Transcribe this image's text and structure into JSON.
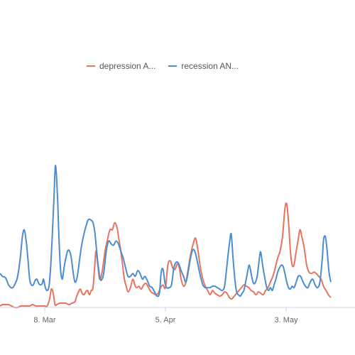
{
  "chart_data": {
    "type": "line",
    "title": "",
    "xlabel": "",
    "ylabel": "",
    "x_tick_labels": [
      "8. Mar",
      "5. Apr",
      "3. May"
    ],
    "ylim": [
      0,
      100
    ],
    "grid": false,
    "legend_position": "top",
    "series": [
      {
        "name": "depression A...",
        "color": "#e8735f",
        "points": [
          [
            -7.4,
            1
          ],
          [
            -7.0,
            2
          ],
          [
            -6.5,
            2
          ],
          [
            -6.0,
            2
          ],
          [
            -5.5,
            1
          ],
          [
            -5.0,
            0
          ],
          [
            -4.5,
            0
          ],
          [
            -4.0,
            1
          ],
          [
            -3.5,
            1
          ],
          [
            -3.0,
            1
          ],
          [
            -2.5,
            1
          ],
          [
            -2.0,
            2
          ],
          [
            -1.5,
            1
          ],
          [
            -1.0,
            1
          ],
          [
            -0.5,
            1
          ],
          [
            0.0,
            1
          ],
          [
            0.4,
            1
          ],
          [
            0.8,
            6
          ],
          [
            1.1,
            13
          ],
          [
            1.4,
            10
          ],
          [
            1.7,
            2
          ],
          [
            2.0,
            2
          ],
          [
            2.5,
            3
          ],
          [
            3.0,
            3
          ],
          [
            3.5,
            3
          ],
          [
            4.0,
            2
          ],
          [
            4.5,
            3
          ],
          [
            5.0,
            4
          ],
          [
            5.3,
            8
          ],
          [
            5.6,
            11
          ],
          [
            5.9,
            13
          ],
          [
            6.2,
            10
          ],
          [
            6.5,
            9
          ],
          [
            6.8,
            11
          ],
          [
            7.1,
            12
          ],
          [
            7.4,
            9
          ],
          [
            7.7,
            12
          ],
          [
            8.0,
            14
          ],
          [
            8.3,
            30
          ],
          [
            8.5,
            40
          ],
          [
            8.8,
            30
          ],
          [
            9.1,
            20
          ],
          [
            9.5,
            25
          ],
          [
            10.0,
            40
          ],
          [
            10.4,
            48
          ],
          [
            10.8,
            55
          ],
          [
            11.2,
            55
          ],
          [
            11.6,
            60
          ],
          [
            12.0,
            56
          ],
          [
            12.3,
            48
          ],
          [
            12.6,
            40
          ],
          [
            12.9,
            30
          ],
          [
            13.2,
            20
          ],
          [
            13.5,
            15
          ],
          [
            13.8,
            11
          ],
          [
            14.2,
            14
          ],
          [
            14.6,
            20
          ],
          [
            15.0,
            15
          ],
          [
            15.3,
            14
          ],
          [
            15.6,
            15
          ],
          [
            16.0,
            13
          ],
          [
            16.4,
            16
          ],
          [
            16.8,
            17
          ],
          [
            17.2,
            14
          ],
          [
            17.6,
            11
          ],
          [
            18.0,
            10
          ],
          [
            18.4,
            9
          ],
          [
            18.8,
            10
          ],
          [
            19.2,
            14
          ],
          [
            19.6,
            16
          ],
          [
            20.0,
            14
          ],
          [
            20.4,
            30
          ],
          [
            20.8,
            33
          ],
          [
            21.2,
            28
          ],
          [
            21.6,
            27
          ],
          [
            22.0,
            31
          ],
          [
            22.3,
            28
          ],
          [
            22.6,
            20
          ],
          [
            23.0,
            15
          ],
          [
            23.4,
            18
          ],
          [
            23.8,
            28
          ],
          [
            24.2,
            38
          ],
          [
            24.6,
            45
          ],
          [
            25.0,
            49
          ],
          [
            25.4,
            40
          ],
          [
            25.8,
            28
          ],
          [
            26.2,
            20
          ],
          [
            26.6,
            15
          ],
          [
            27.0,
            12
          ],
          [
            27.4,
            9
          ],
          [
            27.8,
            12
          ],
          [
            28.2,
            10
          ],
          [
            28.6,
            9
          ],
          [
            29.0,
            8
          ],
          [
            29.4,
            9
          ],
          [
            29.8,
            11
          ],
          [
            30.2,
            10
          ],
          [
            30.6,
            7
          ],
          [
            31.0,
            6
          ],
          [
            31.4,
            8
          ],
          [
            31.8,
            10
          ],
          [
            32.2,
            12
          ],
          [
            32.6,
            14
          ],
          [
            33.0,
            16
          ],
          [
            33.4,
            15
          ],
          [
            33.8,
            14
          ],
          [
            34.2,
            12
          ],
          [
            34.6,
            11
          ],
          [
            35.0,
            9
          ],
          [
            35.4,
            11
          ],
          [
            35.8,
            10
          ],
          [
            36.2,
            9
          ],
          [
            36.6,
            12
          ],
          [
            37.0,
            14
          ],
          [
            37.4,
            18
          ],
          [
            37.8,
            22
          ],
          [
            38.2,
            28
          ],
          [
            38.6,
            35
          ],
          [
            39.0,
            40
          ],
          [
            39.4,
            50
          ],
          [
            39.8,
            70
          ],
          [
            40.1,
            73
          ],
          [
            40.4,
            60
          ],
          [
            40.7,
            40
          ],
          [
            41.0,
            30
          ],
          [
            41.3,
            30
          ],
          [
            41.6,
            38
          ],
          [
            42.0,
            48
          ],
          [
            42.3,
            55
          ],
          [
            42.6,
            50
          ],
          [
            43.0,
            42
          ],
          [
            43.4,
            30
          ],
          [
            43.8,
            25
          ],
          [
            44.2,
            24
          ],
          [
            44.6,
            25
          ],
          [
            45.0,
            24
          ],
          [
            45.4,
            22
          ],
          [
            45.8,
            20
          ],
          [
            46.2,
            15
          ],
          [
            46.6,
            12
          ],
          [
            47.0,
            9
          ],
          [
            47.4,
            7
          ]
        ]
      },
      {
        "name": "recession AN...",
        "color": "#4a8dd1",
        "points": [
          [
            -7.4,
            24
          ],
          [
            -7.0,
            22
          ],
          [
            -6.5,
            21
          ],
          [
            -6.0,
            16
          ],
          [
            -5.6,
            14
          ],
          [
            -5.3,
            14
          ],
          [
            -5.0,
            16
          ],
          [
            -4.6,
            20
          ],
          [
            -4.3,
            27
          ],
          [
            -4.0,
            37
          ],
          [
            -3.7,
            50
          ],
          [
            -3.4,
            55
          ],
          [
            -3.1,
            48
          ],
          [
            -2.8,
            35
          ],
          [
            -2.5,
            20
          ],
          [
            -2.2,
            16
          ],
          [
            -1.9,
            16
          ],
          [
            -1.6,
            19
          ],
          [
            -1.3,
            20
          ],
          [
            -1.0,
            17
          ],
          [
            -0.7,
            16
          ],
          [
            -0.4,
            17
          ],
          [
            -0.2,
            20
          ],
          [
            0.1,
            14
          ],
          [
            0.4,
            12
          ],
          [
            0.7,
            15
          ],
          [
            1.0,
            30
          ],
          [
            1.3,
            55
          ],
          [
            1.55,
            80
          ],
          [
            1.75,
            100
          ],
          [
            1.95,
            93
          ],
          [
            2.15,
            75
          ],
          [
            2.35,
            50
          ],
          [
            2.6,
            28
          ],
          [
            2.9,
            20
          ],
          [
            3.2,
            28
          ],
          [
            3.5,
            35
          ],
          [
            3.8,
            40
          ],
          [
            4.1,
            40
          ],
          [
            4.4,
            35
          ],
          [
            4.7,
            25
          ],
          [
            5.0,
            18
          ],
          [
            5.3,
            20
          ],
          [
            5.6,
            28
          ],
          [
            5.9,
            38
          ],
          [
            6.2,
            46
          ],
          [
            6.5,
            52
          ],
          [
            6.8,
            57
          ],
          [
            7.2,
            62
          ],
          [
            7.6,
            62
          ],
          [
            8.0,
            60
          ],
          [
            8.3,
            53
          ],
          [
            8.6,
            40
          ],
          [
            8.9,
            28
          ],
          [
            9.2,
            20
          ],
          [
            9.5,
            20
          ],
          [
            9.8,
            25
          ],
          [
            10.2,
            40
          ],
          [
            10.6,
            47
          ],
          [
            11.0,
            45
          ],
          [
            11.4,
            44
          ],
          [
            11.8,
            47
          ],
          [
            12.2,
            45
          ],
          [
            12.6,
            40
          ],
          [
            13.0,
            35
          ],
          [
            13.4,
            28
          ],
          [
            13.8,
            22
          ],
          [
            14.2,
            22
          ],
          [
            14.6,
            24
          ],
          [
            15.0,
            22
          ],
          [
            15.4,
            26
          ],
          [
            15.8,
            24
          ],
          [
            16.2,
            20
          ],
          [
            16.6,
            22
          ],
          [
            17.0,
            19
          ],
          [
            17.4,
            15
          ],
          [
            17.8,
            14
          ],
          [
            18.2,
            11
          ],
          [
            18.6,
            8
          ],
          [
            19.0,
            10
          ],
          [
            19.3,
            25
          ],
          [
            19.6,
            27
          ],
          [
            19.9,
            18
          ],
          [
            20.2,
            14
          ],
          [
            20.6,
            14
          ],
          [
            21.0,
            16
          ],
          [
            21.4,
            28
          ],
          [
            21.8,
            32
          ],
          [
            22.2,
            31
          ],
          [
            22.6,
            26
          ],
          [
            23.0,
            22
          ],
          [
            23.4,
            18
          ],
          [
            23.8,
            26
          ],
          [
            24.2,
            36
          ],
          [
            24.6,
            41
          ],
          [
            25.0,
            38
          ],
          [
            25.4,
            30
          ],
          [
            25.8,
            22
          ],
          [
            26.2,
            16
          ],
          [
            26.6,
            14
          ],
          [
            27.0,
            14
          ],
          [
            27.4,
            14
          ],
          [
            27.8,
            15
          ],
          [
            28.2,
            15
          ],
          [
            28.6,
            14
          ],
          [
            29.0,
            13
          ],
          [
            29.4,
            12
          ],
          [
            29.8,
            15
          ],
          [
            30.2,
            30
          ],
          [
            30.6,
            45
          ],
          [
            30.9,
            52
          ],
          [
            31.2,
            35
          ],
          [
            31.5,
            20
          ],
          [
            31.8,
            11
          ],
          [
            32.1,
            9
          ],
          [
            32.4,
            8
          ],
          [
            32.7,
            10
          ],
          [
            33.0,
            12
          ],
          [
            33.3,
            18
          ],
          [
            33.6,
            25
          ],
          [
            33.9,
            30
          ],
          [
            34.2,
            24
          ],
          [
            34.5,
            18
          ],
          [
            34.8,
            17
          ],
          [
            35.2,
            22
          ],
          [
            35.6,
            36
          ],
          [
            35.8,
            39
          ],
          [
            36.1,
            30
          ],
          [
            36.5,
            20
          ],
          [
            36.8,
            14
          ],
          [
            37.1,
            12
          ],
          [
            37.4,
            14
          ],
          [
            37.7,
            12
          ],
          [
            38.0,
            16
          ],
          [
            38.3,
            20
          ],
          [
            38.6,
            25
          ],
          [
            38.9,
            28
          ],
          [
            39.2,
            30
          ],
          [
            39.5,
            29
          ],
          [
            39.8,
            24
          ],
          [
            40.1,
            18
          ],
          [
            40.4,
            14
          ],
          [
            40.7,
            13
          ],
          [
            41.0,
            15
          ],
          [
            41.3,
            14
          ],
          [
            41.6,
            17
          ],
          [
            42.0,
            22
          ],
          [
            42.4,
            22
          ],
          [
            42.8,
            18
          ],
          [
            43.2,
            15
          ],
          [
            43.6,
            14
          ],
          [
            44.0,
            18
          ],
          [
            44.4,
            20
          ],
          [
            44.8,
            16
          ],
          [
            45.2,
            14
          ],
          [
            45.6,
            18
          ],
          [
            46.0,
            35
          ],
          [
            46.2,
            48
          ],
          [
            46.5,
            50
          ],
          [
            46.8,
            40
          ],
          [
            47.1,
            25
          ],
          [
            47.4,
            18
          ]
        ]
      }
    ]
  },
  "chart_meta": {
    "x_tick_positions": [
      0,
      20,
      40
    ]
  }
}
